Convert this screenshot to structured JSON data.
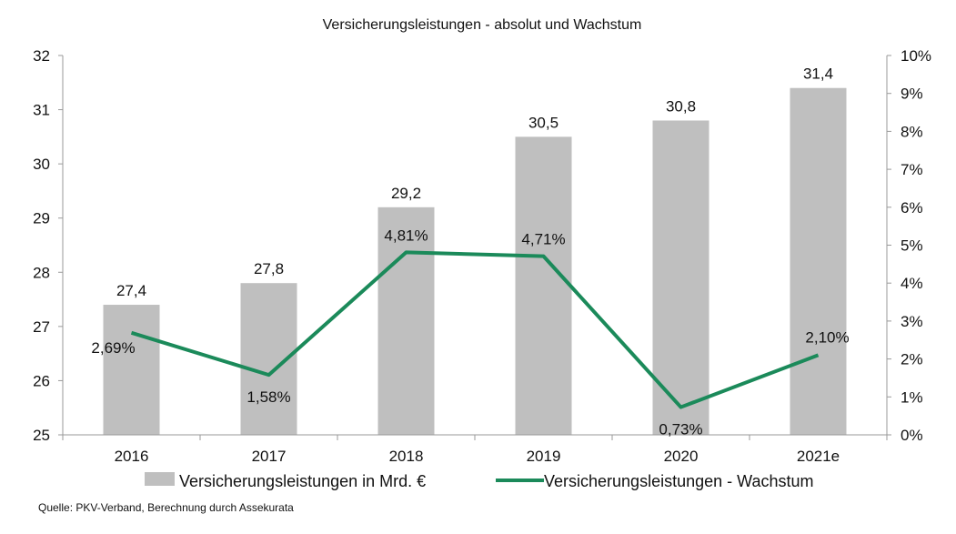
{
  "chart_data": {
    "type": "bar",
    "title": "Versicherungsleistungen - absolut und Wachstum",
    "categories": [
      "2016",
      "2017",
      "2018",
      "2019",
      "2020",
      "2021e"
    ],
    "series": [
      {
        "name": "Versicherungsleistungen in Mrd. €",
        "type": "bar",
        "axis": "left",
        "values": [
          27.4,
          27.8,
          29.2,
          30.5,
          30.8,
          31.4
        ],
        "labels": [
          "27,4",
          "27,8",
          "29,2",
          "30,5",
          "30,8",
          "31,4"
        ],
        "color": "#bfbfbf"
      },
      {
        "name": "Versicherungsleistungen - Wachstum",
        "type": "line",
        "axis": "right",
        "values": [
          2.69,
          1.58,
          4.81,
          4.71,
          0.73,
          2.1
        ],
        "labels": [
          "2,69%",
          "1,58%",
          "4,81%",
          "4,71%",
          "0,73%",
          "2,10%"
        ],
        "color": "#1b8a5a"
      }
    ],
    "y_left": {
      "range": [
        25,
        32
      ],
      "ticks": [
        "25",
        "26",
        "27",
        "28",
        "29",
        "30",
        "31",
        "32"
      ]
    },
    "y_right": {
      "range": [
        0,
        10
      ],
      "ticks": [
        "0%",
        "1%",
        "2%",
        "3%",
        "4%",
        "5%",
        "6%",
        "7%",
        "8%",
        "9%",
        "10%"
      ]
    },
    "grid": false,
    "legend": "bottom",
    "source": "Quelle: PKV-Verband, Berechnung durch Assekurata"
  }
}
